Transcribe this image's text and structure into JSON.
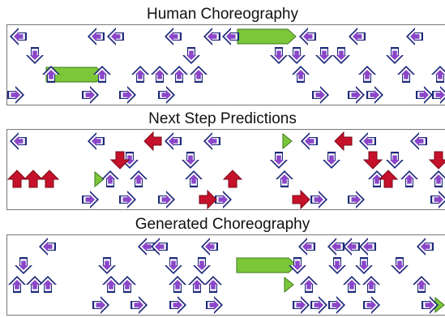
{
  "panels": [
    {
      "title": "Human Choreography"
    },
    {
      "title": "Next Step Predictions"
    },
    {
      "title": "Generated Choreography"
    }
  ],
  "colors": {
    "arrow_outer": "#1f2a7a",
    "arrow_mid": "#ffffff",
    "arrow_inner": "#8b46c9",
    "prediction_red": "#c5122a",
    "hold_green": "#7cc63a",
    "hold_outline": "#3d7a1a"
  },
  "icons": [
    "left-arrow-icon",
    "down-arrow-icon",
    "up-arrow-icon",
    "right-arrow-icon",
    "hold-bar-icon",
    "prediction-arrow-icon"
  ]
}
